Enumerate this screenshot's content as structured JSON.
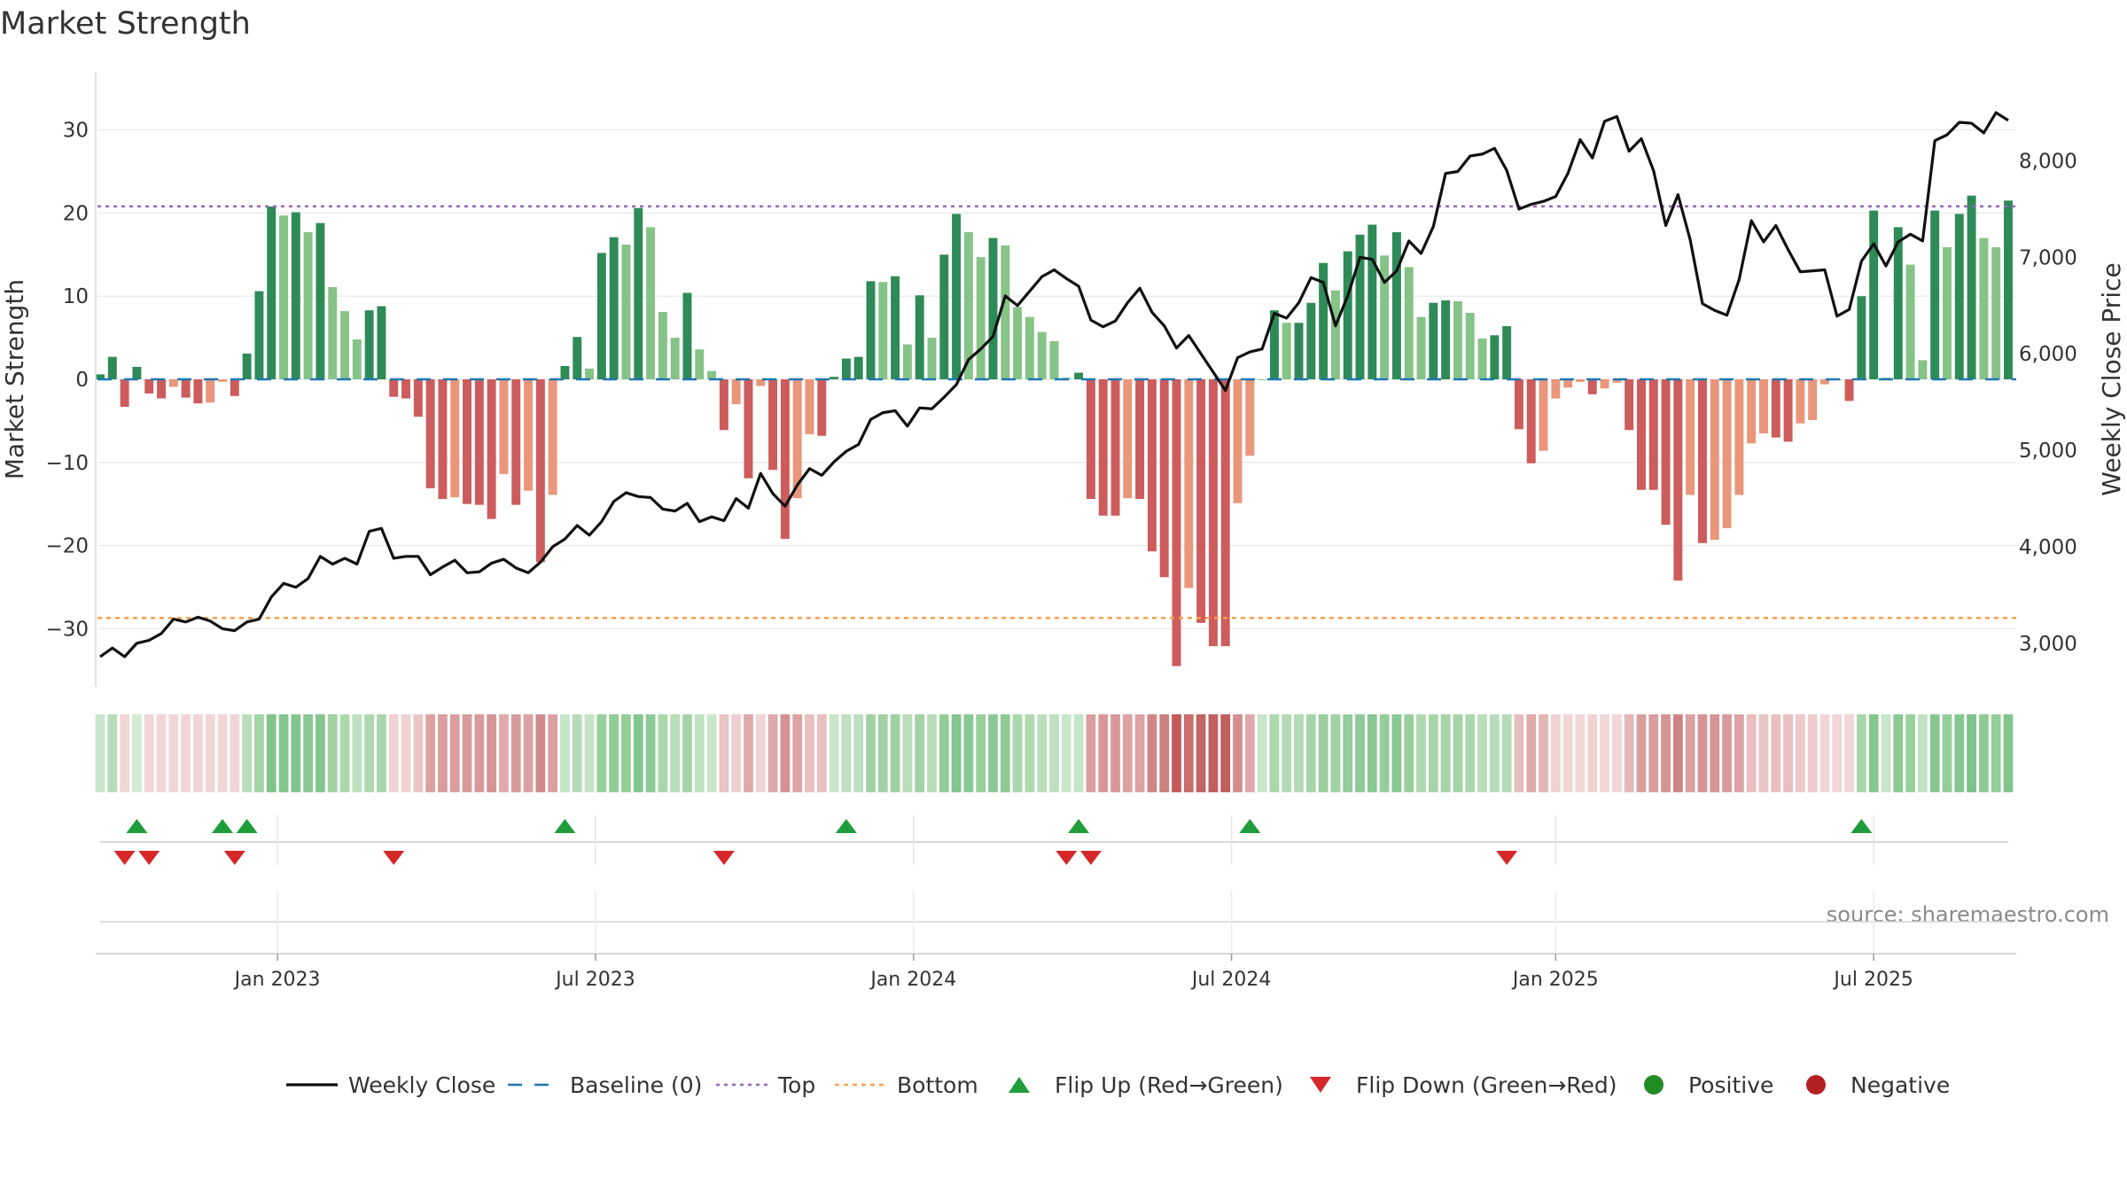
{
  "chart_data": {
    "type": "bar",
    "title": "Market Strength",
    "ylabel": "Market Strength",
    "y2label": "Weekly Close Price",
    "ylim": [
      -36,
      37
    ],
    "y2lim": [
      2860,
      9050
    ],
    "yticks": [
      30,
      20,
      10,
      0,
      -10,
      -20,
      -30
    ],
    "ytick_labels": [
      "30",
      "20",
      "10",
      "0",
      "−10",
      "−20",
      "−30"
    ],
    "y2ticks": [
      8000,
      7000,
      6000,
      5000,
      4000,
      3000
    ],
    "y2tick_labels": [
      "8,000",
      "7,000",
      "6,000",
      "5,000",
      "4,000",
      "3,000"
    ],
    "xticks": [
      {
        "label": "Jan 2023",
        "week": 14.5
      },
      {
        "label": "Jul 2023",
        "week": 40.5
      },
      {
        "label": "Jan 2024",
        "week": 66.5
      },
      {
        "label": "Jul 2024",
        "week": 92.5
      },
      {
        "label": "Jan 2025",
        "week": 119
      },
      {
        "label": "Jul 2025",
        "week": 145
      }
    ],
    "top_level": 20.8,
    "bottom_level": -28.7,
    "baseline": 0,
    "strength": [
      0.6,
      2.7,
      -3.3,
      1.5,
      -1.7,
      -2.3,
      -0.9,
      -2.2,
      -2.9,
      -2.8,
      -0.3,
      -2.0,
      3.1,
      10.6,
      20.8,
      19.7,
      20.1,
      17.7,
      18.8,
      11.1,
      8.2,
      4.8,
      8.3,
      8.8,
      -2.1,
      -2.3,
      -4.5,
      -13.1,
      -14.4,
      -14.2,
      -15.0,
      -15.1,
      -16.8,
      -11.4,
      -15.1,
      -13.4,
      -22.0,
      -13.9,
      1.6,
      5.1,
      1.3,
      15.2,
      17.1,
      16.2,
      20.6,
      18.3,
      8.1,
      5.0,
      10.4,
      3.6,
      1.0,
      -6.1,
      -3.0,
      -11.9,
      -0.8,
      -10.9,
      -19.2,
      -14.3,
      -6.6,
      -6.8,
      0.3,
      2.5,
      2.7,
      11.8,
      11.7,
      12.4,
      4.2,
      10.1,
      5.0,
      15.0,
      19.9,
      17.7,
      14.7,
      17.0,
      16.1,
      8.7,
      7.5,
      5.7,
      4.6,
      0.2,
      0.8,
      -14.4,
      -16.4,
      -16.4,
      -14.3,
      -14.4,
      -20.7,
      -23.8,
      -34.5,
      -25.1,
      -29.3,
      -32.1,
      -32.1,
      -14.9,
      -9.2,
      0.0,
      8.3,
      6.8,
      6.8,
      9.2,
      14.0,
      10.7,
      15.4,
      17.4,
      18.6,
      14.9,
      17.7,
      13.5,
      7.5,
      9.2,
      9.5,
      9.4,
      8.0,
      4.9,
      5.3,
      6.4,
      -6.0,
      -10.1,
      -8.6,
      -2.3,
      -1.0,
      -0.3,
      -1.8,
      -1.1,
      -0.4,
      -6.1,
      -13.3,
      -13.3,
      -17.5,
      -24.2,
      -13.9,
      -19.7,
      -19.3,
      -17.9,
      -13.9,
      -7.7,
      -6.5,
      -7.0,
      -7.5,
      -5.3,
      -4.9,
      -0.6,
      0.0,
      -2.6,
      10.0,
      20.3,
      0.2,
      18.3,
      13.8,
      2.3,
      20.3,
      15.9,
      19.9,
      22.1,
      17.0,
      15.9,
      21.5
    ],
    "weekly_close": [
      2860,
      2950,
      2860,
      3000,
      3030,
      3100,
      3250,
      3220,
      3270,
      3230,
      3150,
      3130,
      3220,
      3250,
      3480,
      3620,
      3580,
      3670,
      3900,
      3820,
      3880,
      3820,
      4160,
      4190,
      3880,
      3900,
      3900,
      3710,
      3790,
      3860,
      3730,
      3740,
      3830,
      3870,
      3780,
      3730,
      3840,
      4000,
      4080,
      4220,
      4120,
      4260,
      4470,
      4560,
      4520,
      4510,
      4390,
      4370,
      4450,
      4260,
      4310,
      4270,
      4500,
      4400,
      4760,
      4550,
      4420,
      4640,
      4810,
      4740,
      4880,
      4990,
      5060,
      5320,
      5390,
      5410,
      5250,
      5440,
      5430,
      5550,
      5680,
      5940,
      6050,
      6180,
      6600,
      6500,
      6650,
      6800,
      6870,
      6780,
      6700,
      6350,
      6280,
      6340,
      6530,
      6680,
      6430,
      6290,
      6060,
      6190,
      6000,
      5810,
      5620,
      5960,
      6020,
      6050,
      6420,
      6370,
      6530,
      6790,
      6740,
      6290,
      6600,
      7000,
      6980,
      6740,
      6860,
      7170,
      7040,
      7320,
      7870,
      7890,
      8050,
      8070,
      8130,
      7900,
      7500,
      7550,
      7580,
      7630,
      7870,
      8220,
      8030,
      8410,
      8460,
      8100,
      8230,
      7900,
      7330,
      7650,
      7180,
      6520,
      6450,
      6400,
      6770,
      7380,
      7160,
      7330,
      7080,
      6850,
      6860,
      6870,
      6390,
      6460,
      6960,
      7140,
      6910,
      7160,
      7240,
      7170,
      8210,
      8270,
      8400,
      8390,
      8290,
      8500,
      8420
    ],
    "heat_colors": [
      "#c8e6c9",
      "#b6dcb9",
      "#f2d6d6",
      "#d2ebd4",
      "#f2d6d6",
      "#f2d6d6",
      "#f2d6d6",
      "#f2d6d6",
      "#f2d6d6",
      "#f2d6d6",
      "#f2d6d6",
      "#f2d6d6",
      "#b9deb9",
      "#a3d4a6",
      "#7fc489",
      "#84c68e",
      "#82c58c",
      "#8ac893",
      "#85c68f",
      "#a0d2a3",
      "#acd8ae",
      "#bee0c0",
      "#acd8ae",
      "#a9d6ab",
      "#f0d2d2",
      "#f0d2d2",
      "#ecc6c6",
      "#dca2a2",
      "#d99e9e",
      "#d99e9e",
      "#d89b9b",
      "#d89b9b",
      "#d69595",
      "#e0aaaa",
      "#d89b9b",
      "#dca2a2",
      "#d08c8c",
      "#dba0a0",
      "#c5e5c7",
      "#b6dcb9",
      "#c5e5c7",
      "#98cf9c",
      "#92cc96",
      "#94ce98",
      "#83c68d",
      "#8ec999",
      "#aad7ad",
      "#b9deb9",
      "#a5d4a8",
      "#c0e2c2",
      "#c8e6c9",
      "#ebc4c4",
      "#efcfcf",
      "#ddaaaa",
      "#f0d4d4",
      "#dea9a9",
      "#d59292",
      "#dea3a3",
      "#e9bfbf",
      "#e9bfbf",
      "#c8e6c9",
      "#bee0c0",
      "#bee0c0",
      "#a0d2a3",
      "#a0d2a3",
      "#9ed1a1",
      "#b9deb9",
      "#a2d3a5",
      "#b6dcb9",
      "#93cd97",
      "#84c68e",
      "#89c892",
      "#97ce9a",
      "#8cc995",
      "#90cb95",
      "#aad7ad",
      "#b0d9b2",
      "#b9deb9",
      "#bee0c0",
      "#c8e6c9",
      "#c5e5c7",
      "#dc9f9f",
      "#d99898",
      "#d99898",
      "#dca2a2",
      "#dca2a2",
      "#d08686",
      "#cb7f7f",
      "#c45a5a",
      "#c96e6e",
      "#c46464",
      "#c25e5e",
      "#c25e5e",
      "#d58f8f",
      "#dfa9a9",
      "#c8e6c9",
      "#aad7ad",
      "#b2dab4",
      "#b2dab4",
      "#a5d4a8",
      "#98cf9c",
      "#a1d3a4",
      "#93cd97",
      "#8ec999",
      "#8ac893",
      "#94ce98",
      "#89c892",
      "#99cf9d",
      "#b0d9b2",
      "#a5d4a8",
      "#a5d4a8",
      "#a5d4a8",
      "#aad7ad",
      "#b9deb9",
      "#b6dcb9",
      "#b3dbb5",
      "#e7bcbc",
      "#deaaaa",
      "#e4b5b5",
      "#f0d2d2",
      "#f2d6d6",
      "#f2d6d6",
      "#f0d2d2",
      "#f2d6d6",
      "#f2d6d6",
      "#e5b8b8",
      "#d99e9e",
      "#d99e9e",
      "#d49494",
      "#cd8383",
      "#da9f9f",
      "#d69595",
      "#d69595",
      "#d89b9b",
      "#dda3a3",
      "#e8bebe",
      "#ebc4c4",
      "#e9c0c0",
      "#e8bebe",
      "#edcaca",
      "#eecccc",
      "#f2d6d6",
      "#f2d6d6",
      "#f2d6d6",
      "#a8d6ab",
      "#86c790",
      "#c8e6c9",
      "#8cc995",
      "#9ad09e",
      "#c0e2c2",
      "#86c790",
      "#94ce98",
      "#86c790",
      "#7ec389",
      "#90cb95",
      "#94ce98",
      "#82c58c"
    ],
    "flip_up_weeks": [
      3,
      10,
      12,
      38,
      61,
      80,
      94,
      144
    ],
    "flip_down_weeks": [
      2,
      4,
      11,
      24,
      51,
      79,
      81,
      115
    ],
    "legend": [
      {
        "key": "weekly_close",
        "label": "Weekly Close"
      },
      {
        "key": "baseline",
        "label": "Baseline (0)"
      },
      {
        "key": "top",
        "label": "Top"
      },
      {
        "key": "bottom",
        "label": "Bottom"
      },
      {
        "key": "flip_up",
        "label": "Flip Up (Red→Green)"
      },
      {
        "key": "flip_down",
        "label": "Flip Down (Green→Red)"
      },
      {
        "key": "positive",
        "label": "Positive"
      },
      {
        "key": "negative",
        "label": "Negative"
      }
    ],
    "source": "source: sharemaestro.com"
  },
  "colors": {
    "pos_strong": "#2e8b57",
    "pos_light": "#86c387",
    "neg_strong": "#cd5c5c",
    "neg_light": "#e9967a",
    "line": "#111111",
    "baseline": "#1f77b4",
    "top": "#9467bd",
    "bottom": "#ff9f4a",
    "flip_up": "#1f9d3b",
    "flip_down": "#d62728",
    "positive_dot": "#228b22",
    "negative_dot": "#b22222"
  }
}
